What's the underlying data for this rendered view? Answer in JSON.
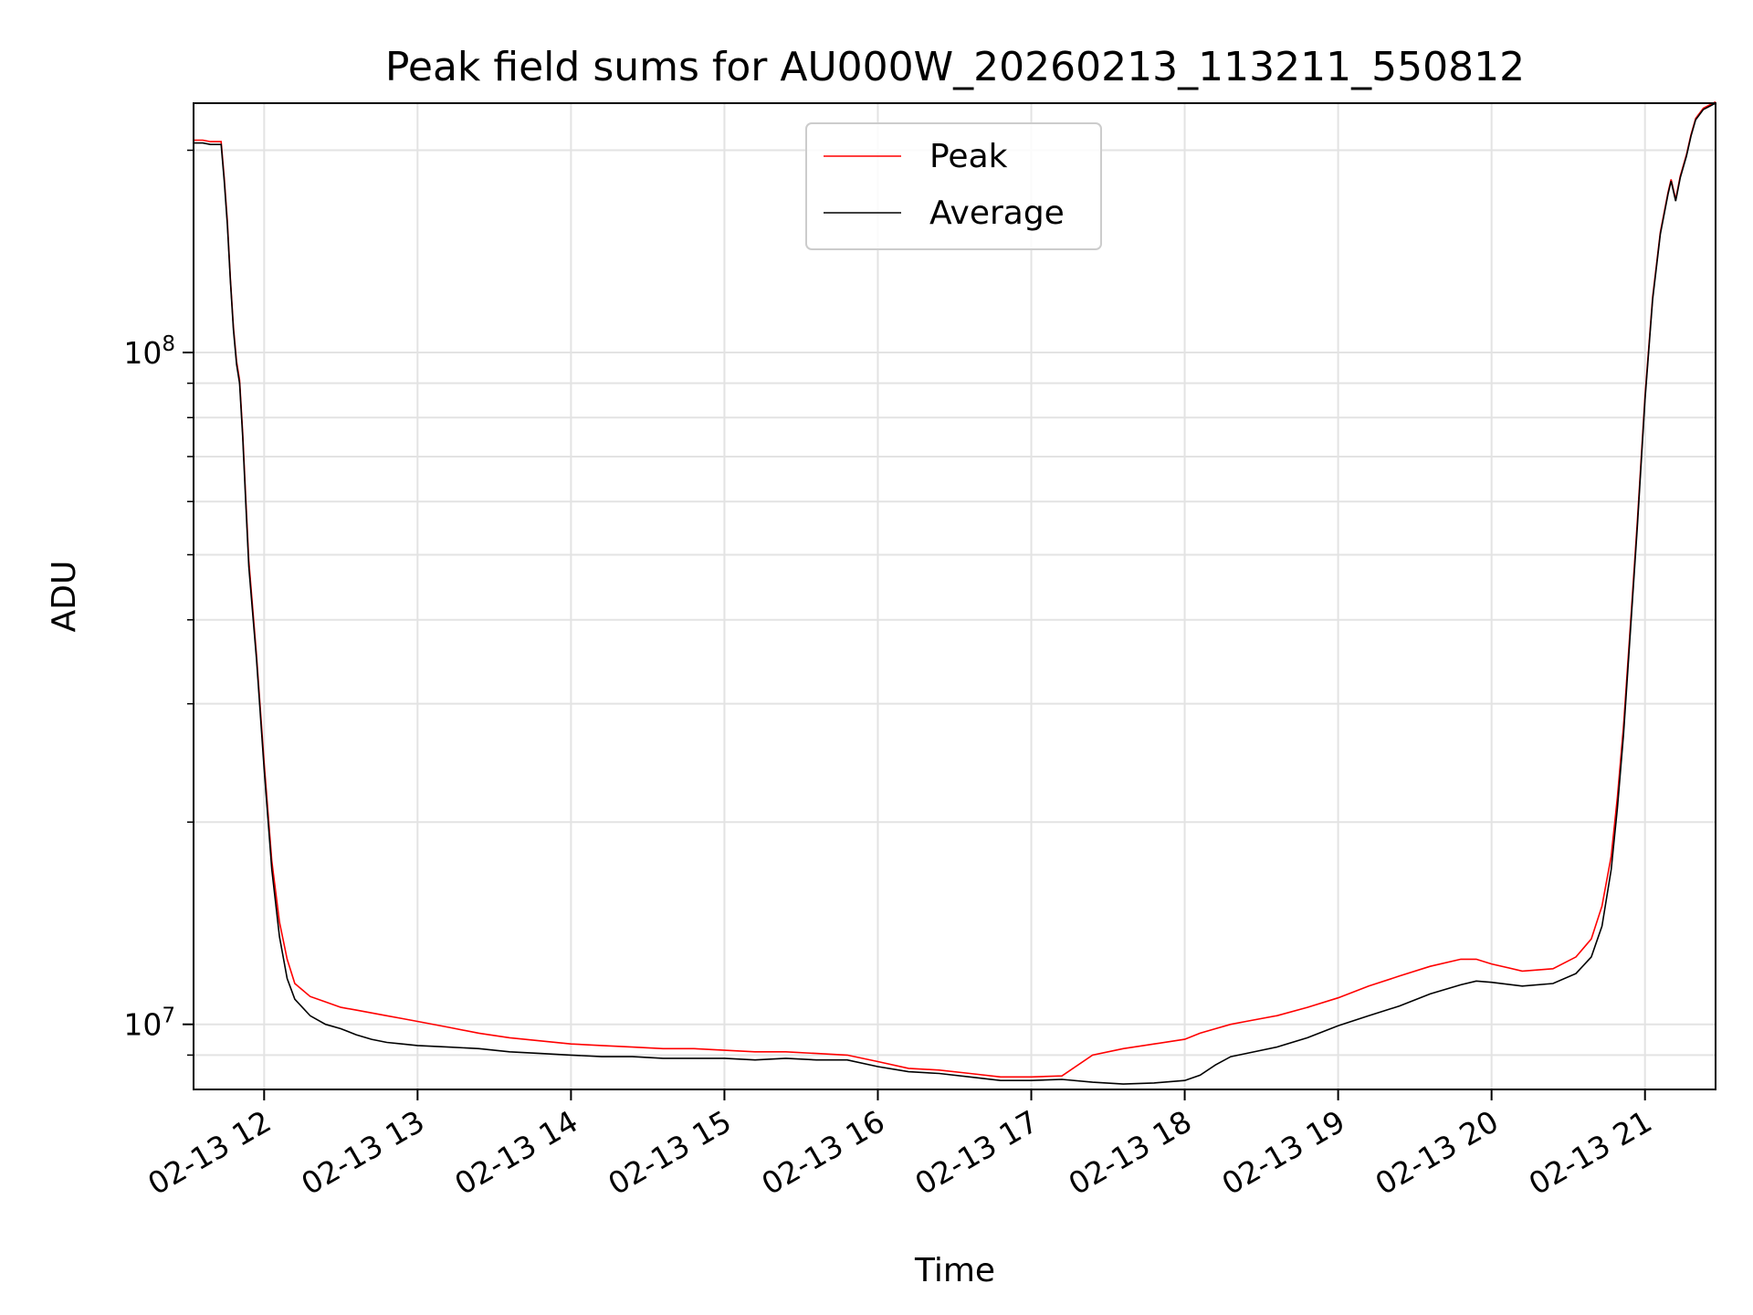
{
  "chart_data": {
    "type": "line",
    "title": "Peak field sums for AU000W_20260213_113211_550812",
    "xlabel": "Time",
    "ylabel": "ADU",
    "yscale": "log",
    "x_tick_labels": [
      "02-13 12",
      "02-13 13",
      "02-13 14",
      "02-13 15",
      "02-13 16",
      "02-13 17",
      "02-13 18",
      "02-13 19",
      "02-13 20",
      "02-13 21"
    ],
    "x_tick_hours": [
      12,
      13,
      14,
      15,
      16,
      17,
      18,
      19,
      20,
      21
    ],
    "x_tick_rotation_deg": 30,
    "y_tick_labels": [
      {
        "value": 10000000,
        "base": "10",
        "exponent": "7"
      },
      {
        "value": 100000000,
        "base": "10",
        "exponent": "8"
      }
    ],
    "y_minor_ticks": [
      9000000,
      20000000,
      30000000,
      40000000,
      50000000,
      60000000,
      70000000,
      80000000,
      90000000,
      200000000
    ],
    "xlim_hours": [
      11.54,
      21.46
    ],
    "ylim": [
      8000000,
      235000000
    ],
    "grid": true,
    "legend": {
      "position": "upper-center",
      "entries": [
        {
          "name": "Peak",
          "color": "#ff0000"
        },
        {
          "name": "Average",
          "color": "#000000"
        }
      ]
    },
    "series": [
      {
        "name": "Average",
        "color": "#000000",
        "x_hours": [
          11.54,
          11.6,
          11.65,
          11.72,
          11.74,
          11.76,
          11.78,
          11.8,
          11.82,
          11.84,
          11.86,
          11.88,
          11.9,
          11.95,
          12.0,
          12.05,
          12.1,
          12.15,
          12.2,
          12.3,
          12.4,
          12.5,
          12.6,
          12.7,
          12.8,
          12.9,
          13.0,
          13.2,
          13.4,
          13.6,
          13.8,
          14.0,
          14.2,
          14.4,
          14.6,
          14.8,
          15.0,
          15.2,
          15.4,
          15.6,
          15.8,
          16.0,
          16.2,
          16.4,
          16.6,
          16.8,
          17.0,
          17.2,
          17.4,
          17.6,
          17.8,
          18.0,
          18.1,
          18.2,
          18.3,
          18.4,
          18.6,
          18.8,
          19.0,
          19.2,
          19.4,
          19.6,
          19.8,
          19.9,
          20.0,
          20.2,
          20.4,
          20.55,
          20.65,
          20.72,
          20.78,
          20.82,
          20.86,
          20.9,
          20.95,
          21.0,
          21.05,
          21.1,
          21.15,
          21.17,
          21.2,
          21.23,
          21.27,
          21.3,
          21.33,
          21.38,
          21.46
        ],
        "y_values": [
          205000000,
          205000000,
          204000000,
          204000000,
          180000000,
          155000000,
          128000000,
          108000000,
          96000000,
          90000000,
          75000000,
          60000000,
          48000000,
          35000000,
          24000000,
          17000000,
          13500000,
          11700000,
          10900000,
          10300000,
          10000000,
          9850000,
          9650000,
          9500000,
          9400000,
          9350000,
          9300000,
          9250000,
          9200000,
          9100000,
          9050000,
          9000000,
          8950000,
          8950000,
          8900000,
          8900000,
          8900000,
          8850000,
          8900000,
          8850000,
          8850000,
          8650000,
          8500000,
          8450000,
          8350000,
          8250000,
          8250000,
          8280000,
          8200000,
          8150000,
          8180000,
          8250000,
          8400000,
          8700000,
          8950000,
          9050000,
          9250000,
          9550000,
          9950000,
          10300000,
          10650000,
          11100000,
          11450000,
          11600000,
          11550000,
          11400000,
          11500000,
          11900000,
          12600000,
          14000000,
          17000000,
          21000000,
          27000000,
          37000000,
          55000000,
          85000000,
          120000000,
          150000000,
          172000000,
          180000000,
          168000000,
          182000000,
          196000000,
          210000000,
          222000000,
          230000000,
          235000000
        ]
      },
      {
        "name": "Peak",
        "color": "#ff0000",
        "x_hours": [
          11.54,
          11.6,
          11.65,
          11.72,
          11.74,
          11.76,
          11.78,
          11.8,
          11.82,
          11.84,
          11.86,
          11.88,
          11.9,
          11.95,
          12.0,
          12.05,
          12.1,
          12.15,
          12.2,
          12.3,
          12.4,
          12.5,
          12.6,
          12.7,
          12.8,
          12.9,
          13.0,
          13.2,
          13.4,
          13.6,
          13.8,
          14.0,
          14.2,
          14.4,
          14.6,
          14.8,
          15.0,
          15.2,
          15.4,
          15.6,
          15.8,
          16.0,
          16.2,
          16.4,
          16.6,
          16.8,
          17.0,
          17.2,
          17.4,
          17.6,
          17.8,
          18.0,
          18.1,
          18.2,
          18.3,
          18.4,
          18.6,
          18.8,
          19.0,
          19.2,
          19.4,
          19.6,
          19.8,
          19.9,
          20.0,
          20.2,
          20.4,
          20.55,
          20.65,
          20.72,
          20.78,
          20.82,
          20.86,
          20.9,
          20.95,
          21.0,
          21.05,
          21.1,
          21.15,
          21.17,
          21.2,
          21.23,
          21.27,
          21.3,
          21.33,
          21.38,
          21.46
        ],
        "y_values": [
          207000000,
          207000000,
          206000000,
          206000000,
          182000000,
          157000000,
          129000000,
          109000000,
          97000000,
          91000000,
          76000000,
          61000000,
          49000000,
          35500000,
          24500000,
          17500000,
          14200000,
          12500000,
          11500000,
          11000000,
          10800000,
          10600000,
          10500000,
          10400000,
          10300000,
          10200000,
          10100000,
          9900000,
          9700000,
          9550000,
          9450000,
          9350000,
          9300000,
          9250000,
          9200000,
          9200000,
          9150000,
          9100000,
          9100000,
          9050000,
          9000000,
          8800000,
          8600000,
          8550000,
          8450000,
          8350000,
          8350000,
          8380000,
          9000000,
          9200000,
          9350000,
          9500000,
          9700000,
          9850000,
          10000000,
          10100000,
          10300000,
          10600000,
          10950000,
          11400000,
          11800000,
          12200000,
          12500000,
          12500000,
          12300000,
          12000000,
          12100000,
          12600000,
          13400000,
          15000000,
          17800000,
          21800000,
          27800000,
          37800000,
          56000000,
          86000000,
          121000000,
          151000000,
          173000000,
          181000000,
          169000000,
          183000000,
          197000000,
          211000000,
          223000000,
          231000000,
          236000000
        ]
      }
    ]
  }
}
